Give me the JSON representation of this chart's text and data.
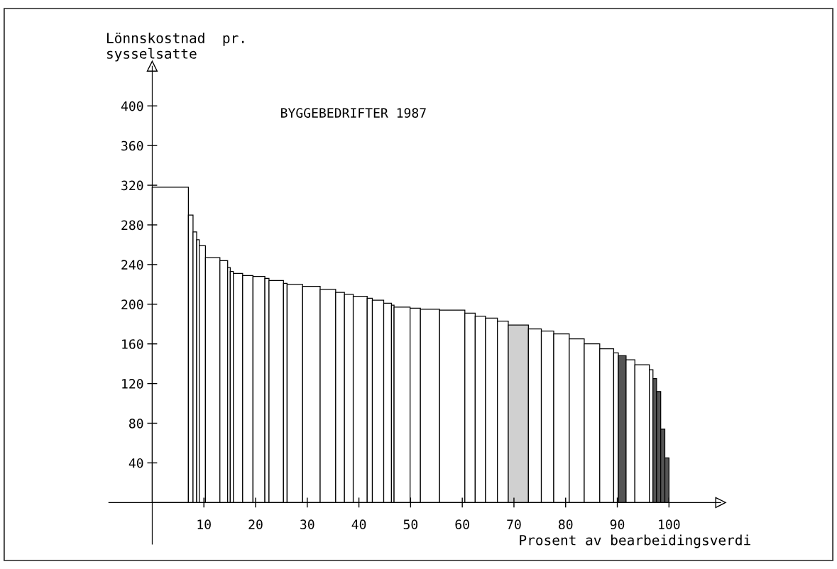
{
  "chart_data": {
    "type": "histogram",
    "title": "BYGGEBEDRIFTER 1987",
    "xlabel": "Prosent av bearbeidingsverdi",
    "ylabel": "Lönnskostnad  pr.\nsysselsatte",
    "bins": [
      0,
      7.0,
      7.9,
      8.6,
      9.1,
      10.3,
      13.1,
      14.6,
      15.1,
      15.7,
      17.5,
      19.5,
      21.8,
      22.6,
      25.4,
      26.1,
      29.1,
      32.5,
      35.5,
      37.2,
      38.9,
      41.6,
      42.6,
      44.8,
      46.3,
      46.8,
      49.9,
      51.9,
      55.6,
      60.5,
      62.5,
      64.5,
      66.8,
      68.9,
      72.8,
      75.3,
      77.7,
      80.7,
      83.6,
      86.6,
      89.3,
      90.2,
      91.7,
      93.4,
      96.2,
      96.9,
      97.6,
      98.4,
      99.2,
      100
    ],
    "values": [
      318,
      290,
      273,
      265,
      259,
      247,
      244,
      237,
      233,
      231,
      229,
      228,
      226,
      224,
      221,
      220,
      218,
      215,
      212,
      210,
      208,
      206,
      204,
      201,
      199,
      197,
      196,
      195,
      194,
      191,
      188,
      186,
      183,
      179,
      175,
      173,
      170,
      165,
      160,
      155,
      151,
      148,
      144,
      139,
      134,
      125,
      112,
      74,
      45
    ],
    "colors": [
      "#ffffff",
      "#ffffff",
      "#ffffff",
      "#ffffff",
      "#ffffff",
      "#ffffff",
      "#ffffff",
      "#ffffff",
      "#ffffff",
      "#ffffff",
      "#ffffff",
      "#ffffff",
      "#ffffff",
      "#ffffff",
      "#ffffff",
      "#ffffff",
      "#ffffff",
      "#ffffff",
      "#ffffff",
      "#ffffff",
      "#ffffff",
      "#ffffff",
      "#ffffff",
      "#ffffff",
      "#ffffff",
      "#ffffff",
      "#ffffff",
      "#ffffff",
      "#ffffff",
      "#ffffff",
      "#ffffff",
      "#ffffff",
      "#ffffff",
      "#d0d0d0",
      "#ffffff",
      "#ffffff",
      "#ffffff",
      "#ffffff",
      "#ffffff",
      "#ffffff",
      "#ffffff",
      "#555555",
      "#ffffff",
      "#ffffff",
      "#ffffff",
      "#555555",
      "#555555",
      "#555555",
      "#555555"
    ],
    "xlim": [
      -8.4,
      110
    ],
    "ylim": [
      -42,
      440
    ],
    "xticks": [
      10,
      20,
      30,
      40,
      50,
      60,
      70,
      80,
      90,
      100
    ],
    "yticks": [
      40,
      80,
      120,
      160,
      200,
      240,
      280,
      320,
      360,
      400
    ],
    "grid": false
  }
}
